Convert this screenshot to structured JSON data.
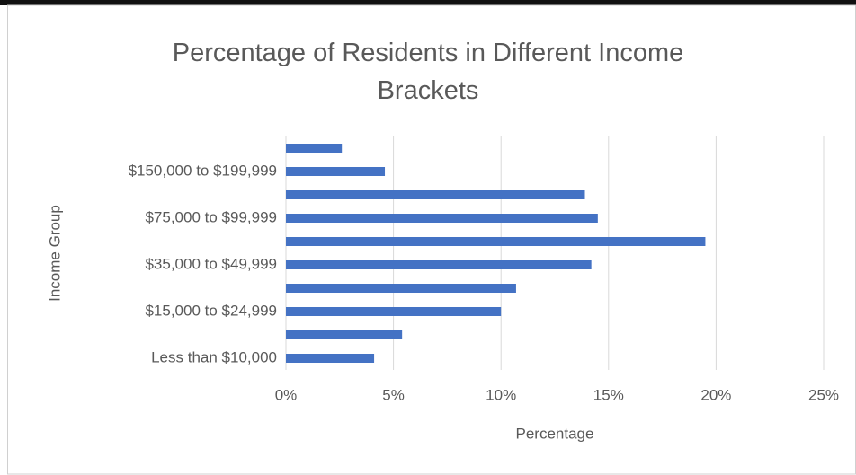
{
  "chart_data": {
    "type": "bar",
    "orientation": "horizontal",
    "title": "Percentage of Residents in Different Income Brackets",
    "xlabel": "Percentage",
    "ylabel": "Income Group",
    "categories": [
      "Less than $10,000",
      null,
      "$15,000 to $24,999",
      null,
      "$35,000 to $49,999",
      null,
      "$75,000 to $99,999",
      null,
      "$150,000 to $199,999",
      null
    ],
    "values": [
      4.1,
      5.4,
      10.0,
      10.7,
      14.2,
      19.5,
      14.5,
      13.9,
      4.6,
      2.6
    ],
    "color": "#4472c4",
    "xlim": [
      0,
      25
    ],
    "xticks": [
      {
        "value": 0,
        "label": "0%"
      },
      {
        "value": 5,
        "label": "5%"
      },
      {
        "value": 10,
        "label": "10%"
      },
      {
        "value": 15,
        "label": "15%"
      },
      {
        "value": 20,
        "label": "20%"
      },
      {
        "value": 25,
        "label": "25%"
      }
    ],
    "grid": true
  }
}
